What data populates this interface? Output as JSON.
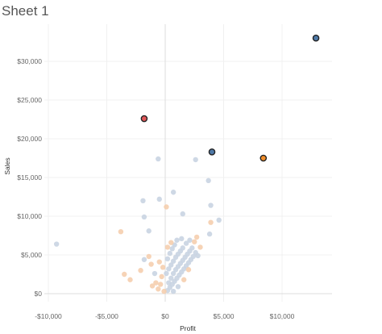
{
  "sheet_title": "Sheet 1",
  "chart_data": {
    "type": "scatter",
    "xlabel": "Profit",
    "ylabel": "Sales",
    "xlim": [
      -10500,
      14000
    ],
    "ylim": [
      0,
      33000
    ],
    "x_ticks": [
      -10000,
      -5000,
      0,
      5000,
      10000
    ],
    "x_tick_labels": [
      "-$10,000",
      "-$5,000",
      "$0",
      "$5,000",
      "$10,000"
    ],
    "y_ticks": [
      0,
      5000,
      10000,
      15000,
      20000,
      25000,
      30000
    ],
    "y_tick_labels": [
      "$0",
      "$5,000",
      "$10,000",
      "$15,000",
      "$20,000",
      "$25,000",
      "$30,000"
    ],
    "grid": true,
    "colors": {
      "background_point": "#c9d4e2",
      "background_point_orange": "#f5ceae",
      "blue": "#4e79a7",
      "orange": "#f28e2b",
      "red": "#e15759",
      "highlight_outline": "#222222"
    },
    "highlighted_points": [
      {
        "x": 12900,
        "y": 33000,
        "color": "blue"
      },
      {
        "x": -1800,
        "y": 22600,
        "color": "red"
      },
      {
        "x": 4000,
        "y": 18300,
        "color": "blue"
      },
      {
        "x": 8400,
        "y": 17500,
        "color": "orange"
      }
    ],
    "background_points": [
      {
        "x": -9300,
        "y": 6400,
        "color": "blue"
      },
      {
        "x": -3800,
        "y": 8000,
        "color": "orange"
      },
      {
        "x": -3500,
        "y": 2500,
        "color": "orange"
      },
      {
        "x": -3000,
        "y": 1800,
        "color": "orange"
      },
      {
        "x": -1900,
        "y": 12000,
        "color": "blue"
      },
      {
        "x": -1800,
        "y": 9900,
        "color": "blue"
      },
      {
        "x": -1400,
        "y": 8100,
        "color": "blue"
      },
      {
        "x": -1800,
        "y": 4400,
        "color": "blue"
      },
      {
        "x": -1400,
        "y": 4800,
        "color": "orange"
      },
      {
        "x": -600,
        "y": 17400,
        "color": "blue"
      },
      {
        "x": -500,
        "y": 12200,
        "color": "blue"
      },
      {
        "x": 100,
        "y": 11200,
        "color": "orange"
      },
      {
        "x": 700,
        "y": 13100,
        "color": "blue"
      },
      {
        "x": 2600,
        "y": 17300,
        "color": "blue"
      },
      {
        "x": 3700,
        "y": 14600,
        "color": "blue"
      },
      {
        "x": 3900,
        "y": 11400,
        "color": "blue"
      },
      {
        "x": 3900,
        "y": 9200,
        "color": "orange"
      },
      {
        "x": 4600,
        "y": 9500,
        "color": "blue"
      },
      {
        "x": 1500,
        "y": 10300,
        "color": "blue"
      },
      {
        "x": 3800,
        "y": 7700,
        "color": "blue"
      },
      {
        "x": 2700,
        "y": 7300,
        "color": "orange"
      },
      {
        "x": 1400,
        "y": 7100,
        "color": "blue"
      },
      {
        "x": -2100,
        "y": 3000,
        "color": "orange"
      },
      {
        "x": -1100,
        "y": 1000,
        "color": "orange"
      },
      {
        "x": -800,
        "y": 1400,
        "color": "orange"
      },
      {
        "x": -600,
        "y": 600,
        "color": "orange"
      },
      {
        "x": -300,
        "y": 2200,
        "color": "orange"
      },
      {
        "x": 200,
        "y": 400,
        "color": "blue"
      },
      {
        "x": 400,
        "y": 800,
        "color": "blue"
      },
      {
        "x": 600,
        "y": 1200,
        "color": "blue"
      },
      {
        "x": 800,
        "y": 1600,
        "color": "blue"
      },
      {
        "x": 1000,
        "y": 2000,
        "color": "blue"
      },
      {
        "x": 1200,
        "y": 2400,
        "color": "blue"
      },
      {
        "x": 1400,
        "y": 2800,
        "color": "blue"
      },
      {
        "x": 1600,
        "y": 3200,
        "color": "blue"
      },
      {
        "x": 1800,
        "y": 3600,
        "color": "blue"
      },
      {
        "x": 2000,
        "y": 4000,
        "color": "blue"
      },
      {
        "x": 2200,
        "y": 4400,
        "color": "blue"
      },
      {
        "x": 2400,
        "y": 4800,
        "color": "blue"
      },
      {
        "x": 2600,
        "y": 5300,
        "color": "blue"
      },
      {
        "x": 300,
        "y": 1400,
        "color": "blue"
      },
      {
        "x": 500,
        "y": 2000,
        "color": "blue"
      },
      {
        "x": 700,
        "y": 2600,
        "color": "blue"
      },
      {
        "x": 900,
        "y": 3100,
        "color": "blue"
      },
      {
        "x": 1100,
        "y": 3500,
        "color": "blue"
      },
      {
        "x": 1300,
        "y": 3900,
        "color": "blue"
      },
      {
        "x": 1500,
        "y": 4300,
        "color": "blue"
      },
      {
        "x": 1700,
        "y": 4700,
        "color": "blue"
      },
      {
        "x": 1900,
        "y": 5100,
        "color": "blue"
      },
      {
        "x": 2100,
        "y": 5500,
        "color": "blue"
      },
      {
        "x": 2300,
        "y": 5900,
        "color": "blue"
      },
      {
        "x": 100,
        "y": 2600,
        "color": "blue"
      },
      {
        "x": 300,
        "y": 3200,
        "color": "blue"
      },
      {
        "x": 500,
        "y": 3700,
        "color": "blue"
      },
      {
        "x": 700,
        "y": 4200,
        "color": "blue"
      },
      {
        "x": 900,
        "y": 4700,
        "color": "blue"
      },
      {
        "x": 1100,
        "y": 5100,
        "color": "blue"
      },
      {
        "x": 1300,
        "y": 5500,
        "color": "blue"
      },
      {
        "x": 1500,
        "y": 5900,
        "color": "blue"
      },
      {
        "x": 200,
        "y": 4500,
        "color": "blue"
      },
      {
        "x": 400,
        "y": 5200,
        "color": "blue"
      },
      {
        "x": 600,
        "y": 5800,
        "color": "blue"
      },
      {
        "x": 800,
        "y": 6300,
        "color": "blue"
      },
      {
        "x": 1000,
        "y": 6900,
        "color": "blue"
      },
      {
        "x": 200,
        "y": 6000,
        "color": "orange"
      },
      {
        "x": 500,
        "y": 6600,
        "color": "orange"
      },
      {
        "x": 1800,
        "y": 6500,
        "color": "blue"
      },
      {
        "x": 2100,
        "y": 6900,
        "color": "blue"
      },
      {
        "x": 2500,
        "y": 6700,
        "color": "orange"
      },
      {
        "x": 3000,
        "y": 6000,
        "color": "orange"
      },
      {
        "x": 2800,
        "y": 4900,
        "color": "blue"
      },
      {
        "x": 2000,
        "y": 3100,
        "color": "orange"
      },
      {
        "x": 1600,
        "y": 1800,
        "color": "orange"
      },
      {
        "x": 1100,
        "y": 900,
        "color": "blue"
      },
      {
        "x": 700,
        "y": 300,
        "color": "blue"
      },
      {
        "x": -100,
        "y": 300,
        "color": "orange"
      },
      {
        "x": -400,
        "y": 1200,
        "color": "orange"
      },
      {
        "x": -200,
        "y": 3400,
        "color": "orange"
      },
      {
        "x": -500,
        "y": 4100,
        "color": "orange"
      },
      {
        "x": -900,
        "y": 2600,
        "color": "blue"
      },
      {
        "x": -1200,
        "y": 3800,
        "color": "orange"
      }
    ]
  }
}
